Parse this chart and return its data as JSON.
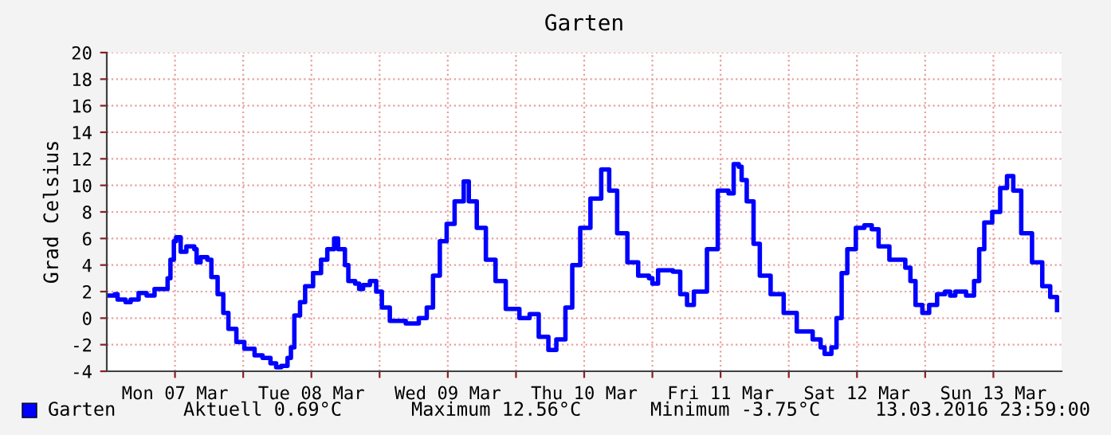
{
  "chart_data": {
    "type": "step",
    "title": "Garten",
    "ylabel": "Grad Celsius",
    "x": [
      "2016-03-07T00:30",
      "2016-03-07T01:24",
      "2016-03-07T01:54",
      "2016-03-07T03:18",
      "2016-03-07T04:12",
      "2016-03-07T05:36",
      "2016-03-07T07:00",
      "2016-03-07T08:24",
      "2016-03-07T09:48",
      "2016-03-07T10:42",
      "2016-03-07T11:12",
      "2016-03-07T11:48",
      "2016-03-07T12:12",
      "2016-03-07T13:00",
      "2016-03-07T14:00",
      "2016-03-07T15:24",
      "2016-03-07T15:48",
      "2016-03-07T16:30",
      "2016-03-07T17:42",
      "2016-03-07T18:24",
      "2016-03-07T19:30",
      "2016-03-07T20:30",
      "2016-03-07T21:24",
      "2016-03-07T22:48",
      "2016-03-08T00:12",
      "2016-03-08T02:00",
      "2016-03-08T03:24",
      "2016-03-08T04:48",
      "2016-03-08T05:48",
      "2016-03-08T06:42",
      "2016-03-08T07:48",
      "2016-03-08T08:24",
      "2016-03-08T09:00",
      "2016-03-08T10:00",
      "2016-03-08T10:54",
      "2016-03-08T12:18",
      "2016-03-08T13:42",
      "2016-03-08T14:48",
      "2016-03-08T16:00",
      "2016-03-08T16:42",
      "2016-03-08T17:54",
      "2016-03-08T18:30",
      "2016-03-08T19:42",
      "2016-03-08T20:24",
      "2016-03-08T21:06",
      "2016-03-08T22:18",
      "2016-03-08T23:24",
      "2016-03-09T00:24",
      "2016-03-09T01:48",
      "2016-03-09T04:36",
      "2016-03-09T06:54",
      "2016-03-09T08:18",
      "2016-03-09T09:24",
      "2016-03-09T10:36",
      "2016-03-09T11:48",
      "2016-03-09T13:12",
      "2016-03-09T14:48",
      "2016-03-09T15:42",
      "2016-03-09T17:06",
      "2016-03-09T18:42",
      "2016-03-09T20:24",
      "2016-03-09T22:12",
      "2016-03-10T00:36",
      "2016-03-10T02:24",
      "2016-03-10T04:00",
      "2016-03-10T05:42",
      "2016-03-10T07:06",
      "2016-03-10T08:42",
      "2016-03-10T09:54",
      "2016-03-10T11:18",
      "2016-03-10T13:06",
      "2016-03-10T15:00",
      "2016-03-10T16:24",
      "2016-03-10T17:48",
      "2016-03-10T19:36",
      "2016-03-10T21:30",
      "2016-03-10T23:24",
      "2016-03-11T00:00",
      "2016-03-11T01:00",
      "2016-03-11T03:36",
      "2016-03-11T04:54",
      "2016-03-11T06:06",
      "2016-03-11T07:18",
      "2016-03-11T09:36",
      "2016-03-11T11:30",
      "2016-03-11T13:24",
      "2016-03-11T14:18",
      "2016-03-11T15:12",
      "2016-03-11T15:42",
      "2016-03-11T16:36",
      "2016-03-11T17:48",
      "2016-03-11T18:54",
      "2016-03-11T20:48",
      "2016-03-11T23:06",
      "2016-03-12T01:24",
      "2016-03-12T04:12",
      "2016-03-12T05:36",
      "2016-03-12T06:18",
      "2016-03-12T07:30",
      "2016-03-12T08:24",
      "2016-03-12T09:18",
      "2016-03-12T10:18",
      "2016-03-12T11:48",
      "2016-03-12T13:18",
      "2016-03-12T14:36",
      "2016-03-12T15:48",
      "2016-03-12T17:42",
      "2016-03-12T20:30",
      "2016-03-12T21:24",
      "2016-03-12T22:18",
      "2016-03-12T23:30",
      "2016-03-13T00:42",
      "2016-03-13T02:06",
      "2016-03-13T03:30",
      "2016-03-13T04:24",
      "2016-03-13T05:18",
      "2016-03-13T07:12",
      "2016-03-13T08:36",
      "2016-03-13T09:30",
      "2016-03-13T10:24",
      "2016-03-13T11:48",
      "2016-03-13T13:12",
      "2016-03-13T14:24",
      "2016-03-13T15:30",
      "2016-03-13T16:54",
      "2016-03-13T18:48",
      "2016-03-13T20:36",
      "2016-03-13T22:00",
      "2016-03-13T23:12"
    ],
    "series": [
      {
        "name": "Garten",
        "color": "#0000ff",
        "values": [
          1.7,
          1.8,
          1.4,
          1.2,
          1.4,
          1.9,
          1.7,
          2.2,
          2.2,
          3.0,
          4.4,
          5.8,
          6.1,
          5.0,
          5.4,
          5.2,
          4.2,
          4.6,
          4.4,
          3.1,
          1.8,
          0.4,
          -0.8,
          -1.8,
          -2.3,
          -2.8,
          -3.0,
          -3.4,
          -3.7,
          -3.6,
          -3.0,
          -2.2,
          0.2,
          1.2,
          2.4,
          3.4,
          4.4,
          5.2,
          6.0,
          5.2,
          4.0,
          2.8,
          2.6,
          2.2,
          2.5,
          2.8,
          2.0,
          0.8,
          -0.2,
          -0.4,
          0.0,
          0.8,
          3.2,
          5.8,
          7.1,
          8.8,
          10.3,
          8.8,
          6.8,
          4.4,
          2.8,
          0.7,
          0.0,
          0.3,
          -1.4,
          -2.4,
          -1.6,
          0.8,
          4.0,
          6.8,
          9.0,
          11.2,
          9.6,
          6.4,
          4.2,
          3.2,
          3.0,
          2.6,
          3.6,
          3.5,
          1.8,
          1.0,
          2.0,
          5.2,
          9.6,
          9.4,
          11.6,
          11.4,
          10.4,
          8.8,
          5.6,
          3.2,
          1.8,
          0.4,
          -1.0,
          -1.6,
          -2.2,
          -2.7,
          -2.2,
          0.0,
          3.4,
          5.2,
          6.8,
          7.0,
          6.7,
          5.4,
          4.4,
          3.8,
          2.8,
          1.0,
          0.4,
          1.0,
          1.8,
          2.0,
          1.7,
          2.0,
          1.7,
          2.8,
          5.2,
          7.2,
          8.0,
          9.8,
          10.7,
          9.6,
          6.4,
          4.2,
          2.4,
          1.6,
          0.6
        ]
      }
    ],
    "xlim": [
      "2016-03-07",
      "2016-03-14"
    ],
    "xticks": [
      {
        "value": "2016-03-07T12:00",
        "label": "Mon 07 Mar"
      },
      {
        "value": "2016-03-08",
        "label": null
      },
      {
        "value": "2016-03-08T12:00",
        "label": "Tue 08 Mar"
      },
      {
        "value": "2016-03-09",
        "label": null
      },
      {
        "value": "2016-03-09T12:00",
        "label": "Wed 09 Mar"
      },
      {
        "value": "2016-03-10",
        "label": null
      },
      {
        "value": "2016-03-10T12:00",
        "label": "Thu 10 Mar"
      },
      {
        "value": "2016-03-11",
        "label": null
      },
      {
        "value": "2016-03-11T12:00",
        "label": "Fri 11 Mar"
      },
      {
        "value": "2016-03-12",
        "label": null
      },
      {
        "value": "2016-03-12T12:00",
        "label": "Sat 12 Mar"
      },
      {
        "value": "2016-03-13",
        "label": null
      },
      {
        "value": "2016-03-13T12:00",
        "label": "Sun 13 Mar"
      }
    ],
    "ylim": [
      -4,
      20
    ],
    "yticks": [
      -4,
      -2,
      0,
      2,
      4,
      6,
      8,
      10,
      12,
      14,
      16,
      18,
      20
    ],
    "grid": true,
    "legend": "bottom",
    "marker": "none",
    "line_style": "solid",
    "annotations": [
      "Aktuell 0.69°C",
      "Maximum 12.56°C",
      "Minimum -3.75°C",
      "13.03.2016 23:59:00"
    ]
  }
}
